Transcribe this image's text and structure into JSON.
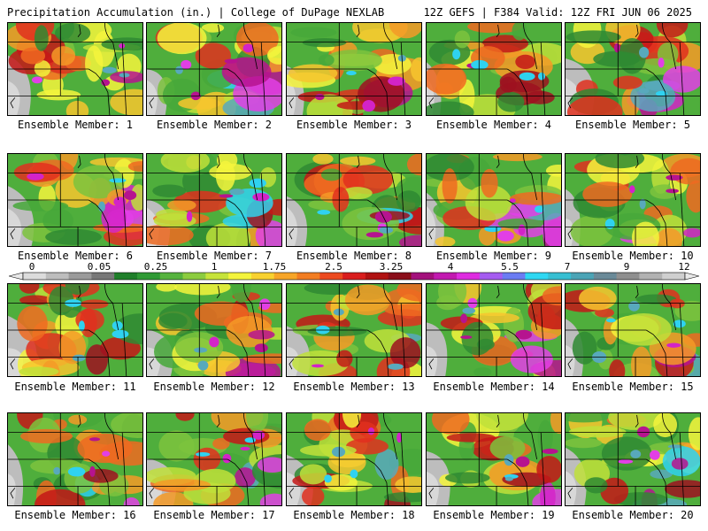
{
  "header": {
    "left": "Precipitation Accumulation (in.) | College of DuPage NEXLAB",
    "right": "12Z GEFS | F384 Valid: 12Z FRI JUN 06 2025"
  },
  "legend": {
    "tick_labels": [
      "0",
      "0.05",
      "0.25",
      "1",
      "1.75",
      "2.5",
      "3.25",
      "4",
      "5.5",
      "7",
      "9",
      "12"
    ],
    "colors": [
      "#dcdcdc",
      "#bdbdbd",
      "#9a9a9a",
      "#787878",
      "#1f7f2a",
      "#2f9a35",
      "#56b33e",
      "#8ccc3f",
      "#c6e33a",
      "#f4f43c",
      "#f8d130",
      "#f7a528",
      "#f27d22",
      "#ec4a1f",
      "#d91d1d",
      "#b01212",
      "#8a0e1a",
      "#a3117c",
      "#c21ab0",
      "#de2ce0",
      "#a55cf0",
      "#6b7cf3",
      "#2ed7f2",
      "#37bfd2",
      "#4ba4b6",
      "#6a8a98",
      "#8f8f8f",
      "#b2b2b2",
      "#cfcfcf"
    ]
  },
  "members": [
    {
      "label": "Ensemble Member: 1"
    },
    {
      "label": "Ensemble Member: 2"
    },
    {
      "label": "Ensemble Member: 3"
    },
    {
      "label": "Ensemble Member: 4"
    },
    {
      "label": "Ensemble Member: 5"
    },
    {
      "label": "Ensemble Member: 6"
    },
    {
      "label": "Ensemble Member: 7"
    },
    {
      "label": "Ensemble Member: 8"
    },
    {
      "label": "Ensemble Member: 9"
    },
    {
      "label": "Ensemble Member: 10"
    },
    {
      "label": "Ensemble Member: 11"
    },
    {
      "label": "Ensemble Member: 12"
    },
    {
      "label": "Ensemble Member: 13"
    },
    {
      "label": "Ensemble Member: 14"
    },
    {
      "label": "Ensemble Member: 15"
    },
    {
      "label": "Ensemble Member: 16"
    },
    {
      "label": "Ensemble Member: 17"
    },
    {
      "label": "Ensemble Member: 18"
    },
    {
      "label": "Ensemble Member: 19"
    },
    {
      "label": "Ensemble Member: 20"
    }
  ]
}
